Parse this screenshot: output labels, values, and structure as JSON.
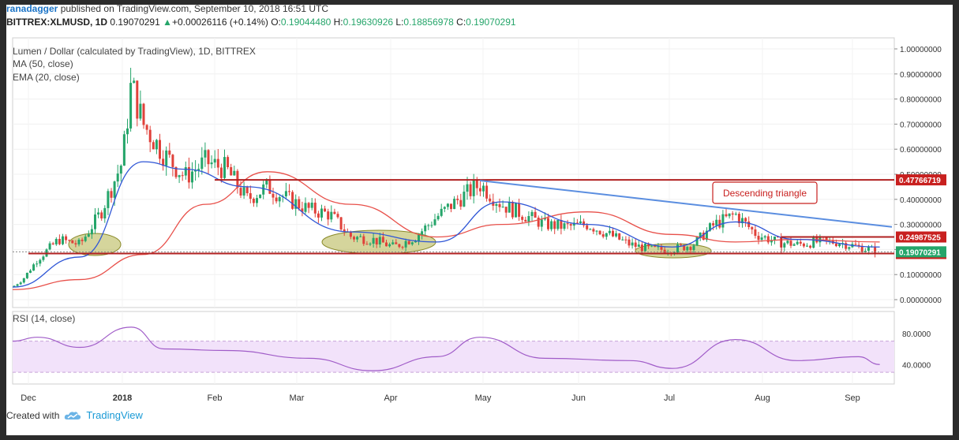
{
  "header": {
    "author": "ranadagger",
    "published": "published on TradingView.com, September 10, 2018 16:51 UTC",
    "symbol": "BITTREX:XLMUSD, 1D",
    "last": "0.19070291",
    "change_arrow": "▲",
    "change": "+0.00026116 (+0.14%)",
    "o_label": "O:",
    "o": "0.19044480",
    "h_label": "H:",
    "h": "0.19630926",
    "l_label": "L:",
    "l": "0.18856978",
    "c_label": "C:",
    "c": "0.19070291"
  },
  "legend": {
    "main": "Lumen / Dollar (calculated by TradingView), 1D, BITTREX",
    "ma": "MA (50, close)",
    "ema": "EMA (20, close)",
    "rsi": "RSI (14, close)"
  },
  "footer": {
    "created_with": "Created with",
    "brand": "TradingView",
    "logo_icon": "tradingview-cloud-icon"
  },
  "colors": {
    "up": "#25a56a",
    "down": "#e0413a",
    "ma": "#e8504a",
    "ema": "#2f56d6",
    "trendline": "#5b8ee0",
    "support": "#b02020",
    "rsi": "#a05cc8",
    "rsi_band": "#f2e2fa",
    "ellipse": "#b3b24a",
    "label_red": "#c8201f"
  },
  "chart_data": {
    "type": "line",
    "title": "Lumen / Dollar (calculated by TradingView), 1D, BITTREX",
    "x_ticks": [
      "Dec",
      "2018",
      "Feb",
      "Mar",
      "Apr",
      "May",
      "Jun",
      "Jul",
      "Aug",
      "Sep"
    ],
    "y_ticks": [
      "1.00000000",
      "0.90000000",
      "0.80000000",
      "0.70000000",
      "0.60000000",
      "0.50000000",
      "0.40000000",
      "0.30000000",
      "0.20000000",
      "0.10000000",
      "0.00000000"
    ],
    "ylim": [
      0,
      1.0
    ],
    "series": [
      {
        "name": "Lumen / Dollar",
        "dates": [
          "2017-11-20",
          "2017-11-27",
          "2017-12-04",
          "2017-12-11",
          "2017-12-18",
          "2017-12-25",
          "2018-01-01",
          "2018-01-04",
          "2018-01-08",
          "2018-01-15",
          "2018-01-22",
          "2018-01-29",
          "2018-02-05",
          "2018-02-12",
          "2018-02-19",
          "2018-02-26",
          "2018-03-05",
          "2018-03-12",
          "2018-03-19",
          "2018-03-26",
          "2018-04-02",
          "2018-04-09",
          "2018-04-16",
          "2018-04-23",
          "2018-04-30",
          "2018-05-07",
          "2018-05-14",
          "2018-05-21",
          "2018-05-28",
          "2018-06-04",
          "2018-06-11",
          "2018-06-18",
          "2018-06-25",
          "2018-07-02",
          "2018-07-09",
          "2018-07-16",
          "2018-07-23",
          "2018-07-30",
          "2018-08-06",
          "2018-08-13",
          "2018-08-20",
          "2018-08-27",
          "2018-09-03",
          "2018-09-10"
        ],
        "values": [
          0.05,
          0.08,
          0.16,
          0.24,
          0.22,
          0.35,
          0.55,
          0.86,
          0.7,
          0.58,
          0.49,
          0.55,
          0.52,
          0.4,
          0.45,
          0.4,
          0.36,
          0.34,
          0.25,
          0.24,
          0.21,
          0.25,
          0.33,
          0.4,
          0.46,
          0.38,
          0.34,
          0.3,
          0.29,
          0.3,
          0.26,
          0.22,
          0.2,
          0.2,
          0.22,
          0.3,
          0.34,
          0.26,
          0.23,
          0.22,
          0.23,
          0.23,
          0.21,
          0.19070291
        ]
      },
      {
        "name": "MA (50, close)",
        "dates": [
          "2017-11-20",
          "2017-12-18",
          "2018-01-08",
          "2018-01-29",
          "2018-02-19",
          "2018-03-19",
          "2018-04-16",
          "2018-05-07",
          "2018-06-04",
          "2018-07-02",
          "2018-07-23",
          "2018-08-13",
          "2018-09-10"
        ],
        "values": [
          0.04,
          0.08,
          0.18,
          0.38,
          0.51,
          0.38,
          0.25,
          0.3,
          0.35,
          0.26,
          0.23,
          0.24,
          0.23
        ]
      },
      {
        "name": "EMA (20, close)",
        "dates": [
          "2017-11-20",
          "2017-12-18",
          "2018-01-08",
          "2018-01-22",
          "2018-02-12",
          "2018-03-19",
          "2018-04-16",
          "2018-05-07",
          "2018-06-04",
          "2018-07-02",
          "2018-07-23",
          "2018-08-13",
          "2018-09-10"
        ],
        "values": [
          0.05,
          0.17,
          0.55,
          0.52,
          0.45,
          0.27,
          0.23,
          0.39,
          0.3,
          0.21,
          0.31,
          0.24,
          0.21
        ]
      },
      {
        "name": "RSI (14, close)",
        "dates": [
          "2017-11-20",
          "2017-12-04",
          "2017-12-18",
          "2018-01-04",
          "2018-01-15",
          "2018-02-05",
          "2018-03-05",
          "2018-03-26",
          "2018-04-16",
          "2018-04-30",
          "2018-05-21",
          "2018-06-18",
          "2018-07-02",
          "2018-07-23",
          "2018-08-13",
          "2018-09-03",
          "2018-09-10"
        ],
        "values": [
          70,
          75,
          62,
          88,
          60,
          58,
          48,
          32,
          50,
          75,
          48,
          45,
          35,
          72,
          45,
          50,
          40
        ]
      }
    ],
    "rsi_ticks": [
      "80.0000",
      "40.0000"
    ],
    "rsi_band": [
      30,
      70
    ],
    "horizontal_levels": [
      {
        "label": "0.47766719",
        "value": 0.47766719
      },
      {
        "label": "0.24987525",
        "value": 0.24987525
      },
      {
        "label": "0.18400000",
        "value": 0.184
      }
    ],
    "last_price_label": "0.19070291",
    "trendline": {
      "from_date": "2018-04-30",
      "from_value": 0.475,
      "to_date": "2018-09-14",
      "to_value": 0.29
    },
    "annotation": "Descending triangle",
    "grid": true
  }
}
